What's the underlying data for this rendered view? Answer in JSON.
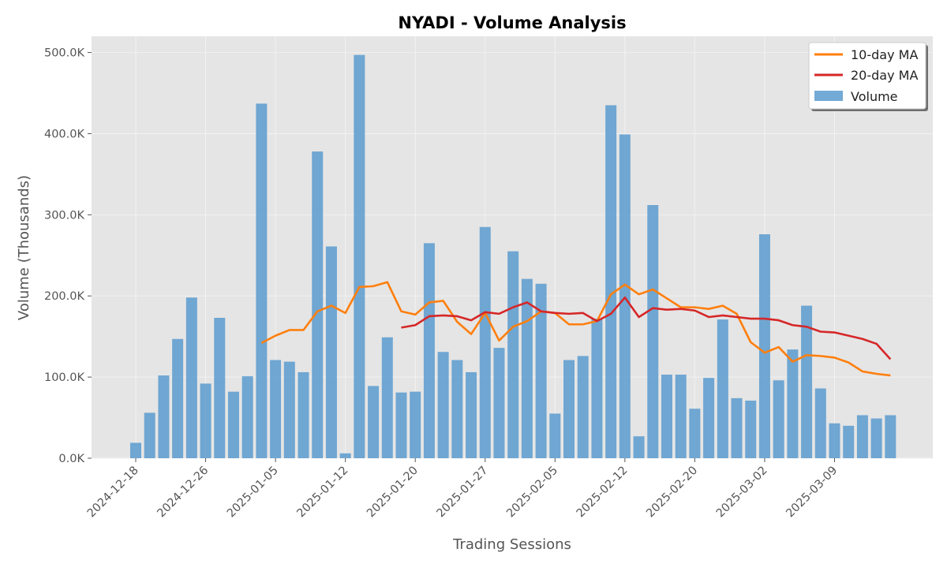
{
  "chart_data": {
    "type": "bar",
    "title": "NYADI - Volume Analysis",
    "xlabel": "Trading Sessions",
    "ylabel": "Volume (Thousands)",
    "ylim": [
      0,
      520000
    ],
    "y_ticks": [
      0,
      100000,
      200000,
      300000,
      400000,
      500000
    ],
    "y_tick_labels": [
      "0.0K",
      "100.0K",
      "200.0K",
      "300.0K",
      "400.0K",
      "500.0K"
    ],
    "x_tick_labels": [
      "2024-12-18",
      "2024-12-26",
      "2025-01-05",
      "2025-01-12",
      "2025-01-20",
      "2025-01-27",
      "2025-02-05",
      "2025-02-12",
      "2025-02-20",
      "2025-03-02",
      "2025-03-09"
    ],
    "x_tick_sessions": [
      0,
      5,
      10,
      15,
      20,
      25,
      30,
      35,
      40,
      45,
      50
    ],
    "grid": true,
    "legend_position": "top-right",
    "legend": [
      "10-day MA",
      "20-day MA",
      "Volume"
    ],
    "colors": {
      "bar": "#5b9bcf",
      "ma10": "#ff7f0e",
      "ma20": "#d62728",
      "plot_bg": "#e5e5e5",
      "grid": "#f2f2f2"
    },
    "series": [
      {
        "name": "Volume",
        "kind": "bar",
        "values": [
          19000,
          56000,
          102000,
          147000,
          198000,
          92000,
          173000,
          82000,
          101000,
          437000,
          121000,
          119000,
          106000,
          378000,
          261000,
          6000,
          497000,
          89000,
          149000,
          81000,
          82000,
          265000,
          131000,
          121000,
          106000,
          285000,
          136000,
          255000,
          221000,
          215000,
          55000,
          121000,
          126000,
          172000,
          435000,
          399000,
          27000,
          312000,
          103000,
          103000,
          61000,
          99000,
          171000,
          74000,
          71000,
          276000,
          96000,
          134000,
          188000,
          86000,
          43000,
          40000,
          53000,
          49000,
          53000
        ]
      },
      {
        "name": "10-day MA",
        "kind": "line",
        "start_index": 9,
        "values": [
          142000,
          151000,
          158000,
          158000,
          181000,
          188000,
          179000,
          211000,
          212000,
          217000,
          181000,
          177000,
          192000,
          194000,
          168000,
          153000,
          179000,
          145000,
          162000,
          169000,
          181000,
          179000,
          165000,
          165000,
          169000,
          202000,
          214000,
          202000,
          208000,
          197000,
          186000,
          186000,
          184000,
          188000,
          178000,
          143000,
          130000,
          137000,
          119000,
          127000,
          126000,
          124000,
          118000,
          107000,
          104000,
          102000
        ]
      },
      {
        "name": "20-day MA",
        "kind": "line",
        "start_index": 19,
        "values": [
          161000,
          164000,
          175000,
          176000,
          175000,
          170000,
          180000,
          178000,
          186000,
          192000,
          181000,
          179000,
          178000,
          179000,
          169000,
          178000,
          198000,
          174000,
          185000,
          183000,
          184000,
          182000,
          174000,
          176000,
          174000,
          172000,
          172000,
          170000,
          164000,
          162000,
          156000,
          155000,
          151000,
          147000,
          141000,
          122000
        ]
      }
    ]
  }
}
